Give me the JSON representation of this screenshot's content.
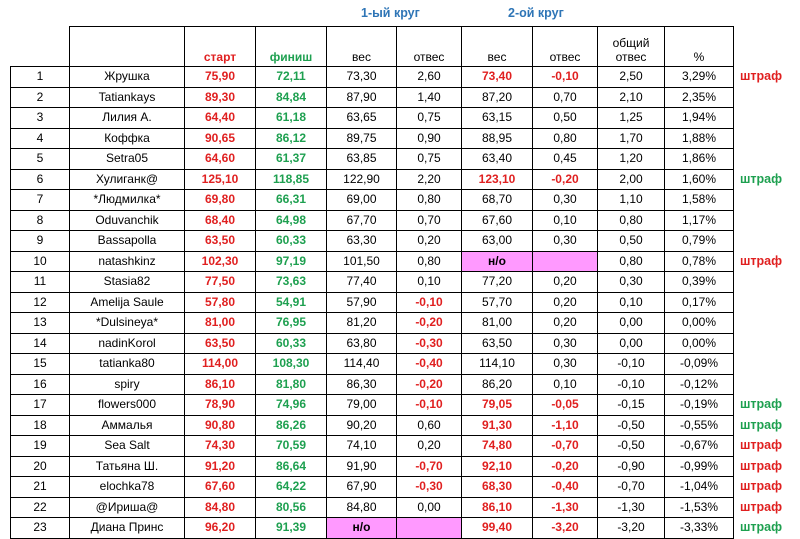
{
  "header": {
    "round1": "1-ый круг",
    "round2": "2-ой круг",
    "columns": [
      "",
      "",
      "старт",
      "финиш",
      "вес",
      "отвес",
      "вес",
      "отвес",
      "общий отвес",
      "%",
      ""
    ]
  },
  "rows": [
    {
      "n": "1",
      "name": "Жрушка",
      "start": "75,90",
      "finish": "72,11",
      "w1": "73,30",
      "d1": "2,60",
      "w2": "73,40",
      "d2": "-0,10",
      "total": "2,50",
      "pct": "3,29%",
      "pen": "штраф",
      "pen_color": "red",
      "w2_style": "red",
      "d2_style": "red",
      "d1_style": "black",
      "w1_style": "black"
    },
    {
      "n": "2",
      "name": "Tatiankays",
      "start": "89,30",
      "finish": "84,84",
      "w1": "87,90",
      "d1": "1,40",
      "w2": "87,20",
      "d2": "0,70",
      "total": "2,10",
      "pct": "2,35%",
      "pen": "",
      "pen_color": "",
      "w2_style": "black",
      "d2_style": "black",
      "d1_style": "black",
      "w1_style": "black"
    },
    {
      "n": "3",
      "name": "Лилия А.",
      "start": "64,40",
      "finish": "61,18",
      "w1": "63,65",
      "d1": "0,75",
      "w2": "63,15",
      "d2": "0,50",
      "total": "1,25",
      "pct": "1,94%",
      "pen": "",
      "pen_color": "",
      "w2_style": "black",
      "d2_style": "black",
      "d1_style": "black",
      "w1_style": "black"
    },
    {
      "n": "4",
      "name": "Коффка",
      "start": "90,65",
      "finish": "86,12",
      "w1": "89,75",
      "d1": "0,90",
      "w2": "88,95",
      "d2": "0,80",
      "total": "1,70",
      "pct": "1,88%",
      "pen": "",
      "pen_color": "",
      "w2_style": "black",
      "d2_style": "black",
      "d1_style": "black",
      "w1_style": "black"
    },
    {
      "n": "5",
      "name": "Setra05",
      "start": "64,60",
      "finish": "61,37",
      "w1": "63,85",
      "d1": "0,75",
      "w2": "63,40",
      "d2": "0,45",
      "total": "1,20",
      "pct": "1,86%",
      "pen": "",
      "pen_color": "",
      "w2_style": "black",
      "d2_style": "black",
      "d1_style": "black",
      "w1_style": "black"
    },
    {
      "n": "6",
      "name": "Хулиганк@",
      "start": "125,10",
      "finish": "118,85",
      "w1": "122,90",
      "d1": "2,20",
      "w2": "123,10",
      "d2": "-0,20",
      "total": "2,00",
      "pct": "1,60%",
      "pen": "штраф",
      "pen_color": "green",
      "w2_style": "red",
      "d2_style": "red",
      "d1_style": "black",
      "w1_style": "black"
    },
    {
      "n": "7",
      "name": "*Людмилка*",
      "start": "69,80",
      "finish": "66,31",
      "w1": "69,00",
      "d1": "0,80",
      "w2": "68,70",
      "d2": "0,30",
      "total": "1,10",
      "pct": "1,58%",
      "pen": "",
      "pen_color": "",
      "w2_style": "black",
      "d2_style": "black",
      "d1_style": "black",
      "w1_style": "black"
    },
    {
      "n": "8",
      "name": "Oduvanchik",
      "start": "68,40",
      "finish": "64,98",
      "w1": "67,70",
      "d1": "0,70",
      "w2": "67,60",
      "d2": "0,10",
      "total": "0,80",
      "pct": "1,17%",
      "pen": "",
      "pen_color": "",
      "w2_style": "black",
      "d2_style": "black",
      "d1_style": "black",
      "w1_style": "black"
    },
    {
      "n": "9",
      "name": "Bassapolla",
      "start": "63,50",
      "finish": "60,33",
      "w1": "63,30",
      "d1": "0,20",
      "w2": "63,00",
      "d2": "0,30",
      "total": "0,50",
      "pct": "0,79%",
      "pen": "",
      "pen_color": "",
      "w2_style": "black",
      "d2_style": "black",
      "d1_style": "black",
      "w1_style": "black"
    },
    {
      "n": "10",
      "name": "natashkinz",
      "start": "102,30",
      "finish": "97,19",
      "w1": "101,50",
      "d1": "0,80",
      "w2": "н/о",
      "d2": "",
      "total": "0,80",
      "pct": "0,78%",
      "pen": "штраф",
      "pen_color": "red",
      "w2_style": "pink",
      "d2_style": "pink",
      "d1_style": "black",
      "w1_style": "black"
    },
    {
      "n": "11",
      "name": "Stasia82",
      "start": "77,50",
      "finish": "73,63",
      "w1": "77,40",
      "d1": "0,10",
      "w2": "77,20",
      "d2": "0,20",
      "total": "0,30",
      "pct": "0,39%",
      "pen": "",
      "pen_color": "",
      "w2_style": "black",
      "d2_style": "black",
      "d1_style": "black",
      "w1_style": "black"
    },
    {
      "n": "12",
      "name": "Amelija Saule",
      "start": "57,80",
      "finish": "54,91",
      "w1": "57,90",
      "d1": "-0,10",
      "w2": "57,70",
      "d2": "0,20",
      "total": "0,10",
      "pct": "0,17%",
      "pen": "",
      "pen_color": "",
      "w2_style": "black",
      "d2_style": "black",
      "d1_style": "red",
      "w1_style": "black"
    },
    {
      "n": "13",
      "name": "*Dulsineya*",
      "start": "81,00",
      "finish": "76,95",
      "w1": "81,20",
      "d1": "-0,20",
      "w2": "81,00",
      "d2": "0,20",
      "total": "0,00",
      "pct": "0,00%",
      "pen": "",
      "pen_color": "",
      "w2_style": "black",
      "d2_style": "black",
      "d1_style": "red",
      "w1_style": "black"
    },
    {
      "n": "14",
      "name": "nadinKorol",
      "start": "63,50",
      "finish": "60,33",
      "w1": "63,80",
      "d1": "-0,30",
      "w2": "63,50",
      "d2": "0,30",
      "total": "0,00",
      "pct": "0,00%",
      "pen": "",
      "pen_color": "",
      "w2_style": "black",
      "d2_style": "black",
      "d1_style": "red",
      "w1_style": "black"
    },
    {
      "n": "15",
      "name": "tatianka80",
      "start": "114,00",
      "finish": "108,30",
      "w1": "114,40",
      "d1": "-0,40",
      "w2": "114,10",
      "d2": "0,30",
      "total": "-0,10",
      "pct": "-0,09%",
      "pen": "",
      "pen_color": "",
      "w2_style": "black",
      "d2_style": "black",
      "d1_style": "red",
      "w1_style": "black"
    },
    {
      "n": "16",
      "name": "spiry",
      "start": "86,10",
      "finish": "81,80",
      "w1": "86,30",
      "d1": "-0,20",
      "w2": "86,20",
      "d2": "0,10",
      "total": "-0,10",
      "pct": "-0,12%",
      "pen": "",
      "pen_color": "",
      "w2_style": "black",
      "d2_style": "black",
      "d1_style": "red",
      "w1_style": "black"
    },
    {
      "n": "17",
      "name": "flowers000",
      "start": "78,90",
      "finish": "74,96",
      "w1": "79,00",
      "d1": "-0,10",
      "w2": "79,05",
      "d2": "-0,05",
      "total": "-0,15",
      "pct": "-0,19%",
      "pen": "штраф",
      "pen_color": "green",
      "w2_style": "red",
      "d2_style": "red",
      "d1_style": "red",
      "w1_style": "black"
    },
    {
      "n": "18",
      "name": "Аммалья",
      "start": "90,80",
      "finish": "86,26",
      "w1": "90,20",
      "d1": "0,60",
      "w2": "91,30",
      "d2": "-1,10",
      "total": "-0,50",
      "pct": "-0,55%",
      "pen": "штраф",
      "pen_color": "green",
      "w2_style": "red",
      "d2_style": "red",
      "d1_style": "black",
      "w1_style": "black"
    },
    {
      "n": "19",
      "name": "Sea Salt",
      "start": "74,30",
      "finish": "70,59",
      "w1": "74,10",
      "d1": "0,20",
      "w2": "74,80",
      "d2": "-0,70",
      "total": "-0,50",
      "pct": "-0,67%",
      "pen": "штраф",
      "pen_color": "red",
      "w2_style": "red",
      "d2_style": "red",
      "d1_style": "black",
      "w1_style": "black"
    },
    {
      "n": "20",
      "name": "Татьяна Ш.",
      "start": "91,20",
      "finish": "86,64",
      "w1": "91,90",
      "d1": "-0,70",
      "w2": "92,10",
      "d2": "-0,20",
      "total": "-0,90",
      "pct": "-0,99%",
      "pen": "штраф",
      "pen_color": "red",
      "w2_style": "red",
      "d2_style": "red",
      "d1_style": "red",
      "w1_style": "black"
    },
    {
      "n": "21",
      "name": "elochka78",
      "start": "67,60",
      "finish": "64,22",
      "w1": "67,90",
      "d1": "-0,30",
      "w2": "68,30",
      "d2": "-0,40",
      "total": "-0,70",
      "pct": "-1,04%",
      "pen": "штраф",
      "pen_color": "red",
      "w2_style": "red",
      "d2_style": "red",
      "d1_style": "red",
      "w1_style": "black"
    },
    {
      "n": "22",
      "name": "@Ириша@",
      "start": "84,80",
      "finish": "80,56",
      "w1": "84,80",
      "d1": "0,00",
      "w2": "86,10",
      "d2": "-1,30",
      "total": "-1,30",
      "pct": "-1,53%",
      "pen": "штраф",
      "pen_color": "red",
      "w2_style": "red",
      "d2_style": "red",
      "d1_style": "black",
      "w1_style": "black"
    },
    {
      "n": "23",
      "name": "Диана Принс",
      "start": "96,20",
      "finish": "91,39",
      "w1": "н/о",
      "d1": "",
      "w2": "99,40",
      "d2": "-3,20",
      "total": "-3,20",
      "pct": "-3,33%",
      "pen": "штраф",
      "pen_color": "green",
      "w2_style": "red",
      "d2_style": "red",
      "d1_style": "pink",
      "w1_style": "pink"
    }
  ]
}
